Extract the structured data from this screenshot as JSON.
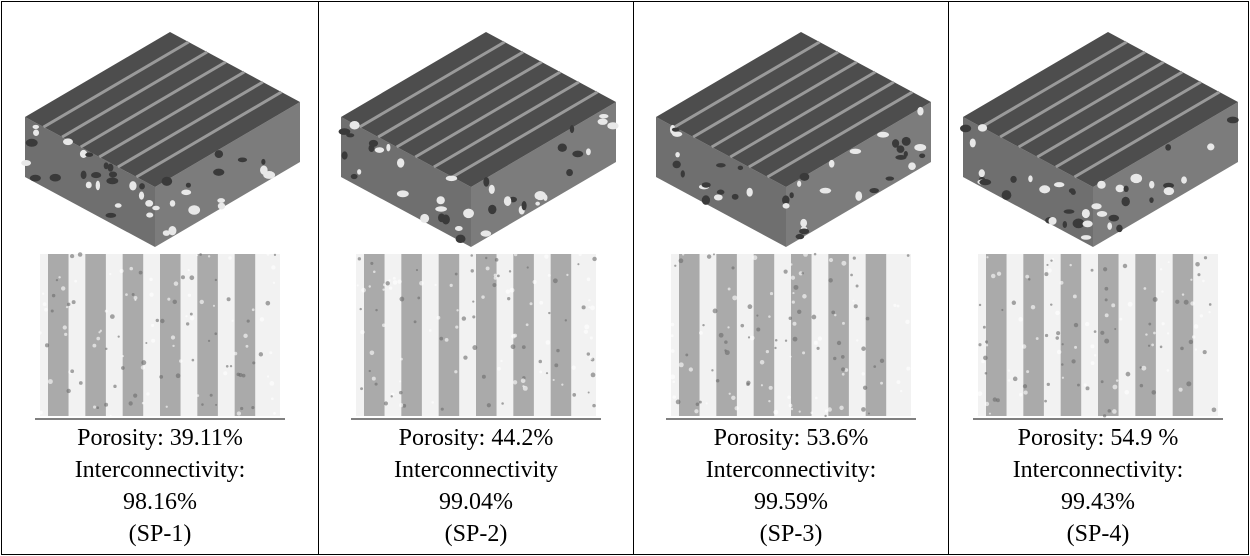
{
  "columns": [
    {
      "porosity": "Porosity: 39.11%",
      "interconnectivity_label": "Interconnectivity:",
      "interconnectivity_value": "98.16%",
      "sample": "(SP-1)"
    },
    {
      "porosity": "Porosity: 44.2%",
      "interconnectivity_label": "Interconnectivity",
      "interconnectivity_value": "99.04%",
      "sample": "(SP-2)"
    },
    {
      "porosity": "Porosity: 53.6%",
      "interconnectivity_label": "Interconnectivity:",
      "interconnectivity_value": "99.59%",
      "sample": "(SP-3)"
    },
    {
      "porosity": "Porosity: 54.9 %",
      "interconnectivity_label": "Interconnectivity:",
      "interconnectivity_value": "99.43%",
      "sample": "(SP-4)"
    }
  ]
}
